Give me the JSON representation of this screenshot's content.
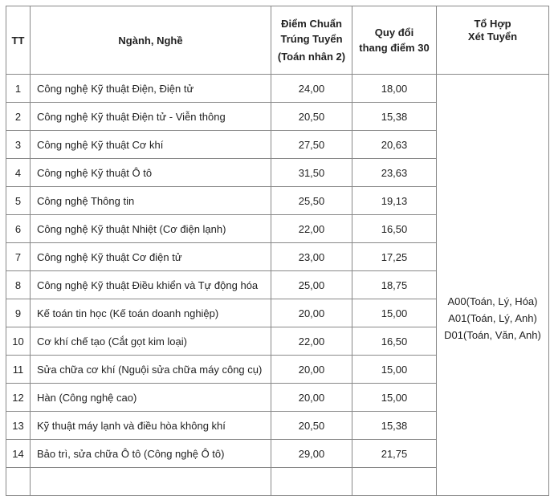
{
  "headers": {
    "tt": "TT",
    "name": "Ngành, Nghề",
    "score_line1": "Điểm Chuẩn",
    "score_line2": "Trúng Tuyển",
    "score_line3": "(Toán nhân 2)",
    "conv_line1": "Quy đổi",
    "conv_line2": "thang điểm 30",
    "combo_line1": "Tổ Hợp",
    "combo_line2": "Xét Tuyển"
  },
  "rows": [
    {
      "tt": "1",
      "name": "Công nghệ Kỹ thuật Điện, Điện tử",
      "score": "24,00",
      "conv": "18,00"
    },
    {
      "tt": "2",
      "name": "Công nghệ Kỹ thuật Điện tử - Viễn thông",
      "score": "20,50",
      "conv": "15,38"
    },
    {
      "tt": "3",
      "name": "Công nghệ Kỹ thuật Cơ khí",
      "score": "27,50",
      "conv": "20,63"
    },
    {
      "tt": "4",
      "name": "Công nghệ Kỹ thuật Ô tô",
      "score": "31,50",
      "conv": "23,63"
    },
    {
      "tt": "5",
      "name": "Công nghệ Thông tin",
      "score": "25,50",
      "conv": "19,13"
    },
    {
      "tt": "6",
      "name": "Công nghệ Kỹ thuật Nhiệt (Cơ điện lạnh)",
      "score": "22,00",
      "conv": "16,50"
    },
    {
      "tt": "7",
      "name": "Công nghệ Kỹ thuật Cơ điện tử",
      "score": "23,00",
      "conv": "17,25"
    },
    {
      "tt": "8",
      "name": "Công nghệ Kỹ thuật Điều khiển và Tự động hóa",
      "score": "25,00",
      "conv": "18,75"
    },
    {
      "tt": "9",
      "name": "Kế toán tin học (Kế toán doanh nghiệp)",
      "score": "20,00",
      "conv": "15,00"
    },
    {
      "tt": "10",
      "name": "Cơ khí chế tạo (Cắt gọt kim loại)",
      "score": "22,00",
      "conv": "16,50"
    },
    {
      "tt": "11",
      "name": "Sửa chữa cơ khí (Nguội sửa chữa máy công cụ)",
      "score": "20,00",
      "conv": "15,00"
    },
    {
      "tt": "12",
      "name": "Hàn (Công nghệ cao)",
      "score": "20,00",
      "conv": "15,00"
    },
    {
      "tt": "13",
      "name": "Kỹ thuật máy lạnh và điều hòa không khí",
      "score": "20,50",
      "conv": "15,38"
    },
    {
      "tt": "14",
      "name": "Bảo trì, sửa chữa Ô tô (Công nghệ Ô tô)",
      "score": "29,00",
      "conv": "21,75"
    }
  ],
  "combos": [
    "A00(Toán, Lý, Hóa)",
    "A01(Toán, Lý, Anh)",
    "D01(Toán, Văn, Anh)"
  ]
}
